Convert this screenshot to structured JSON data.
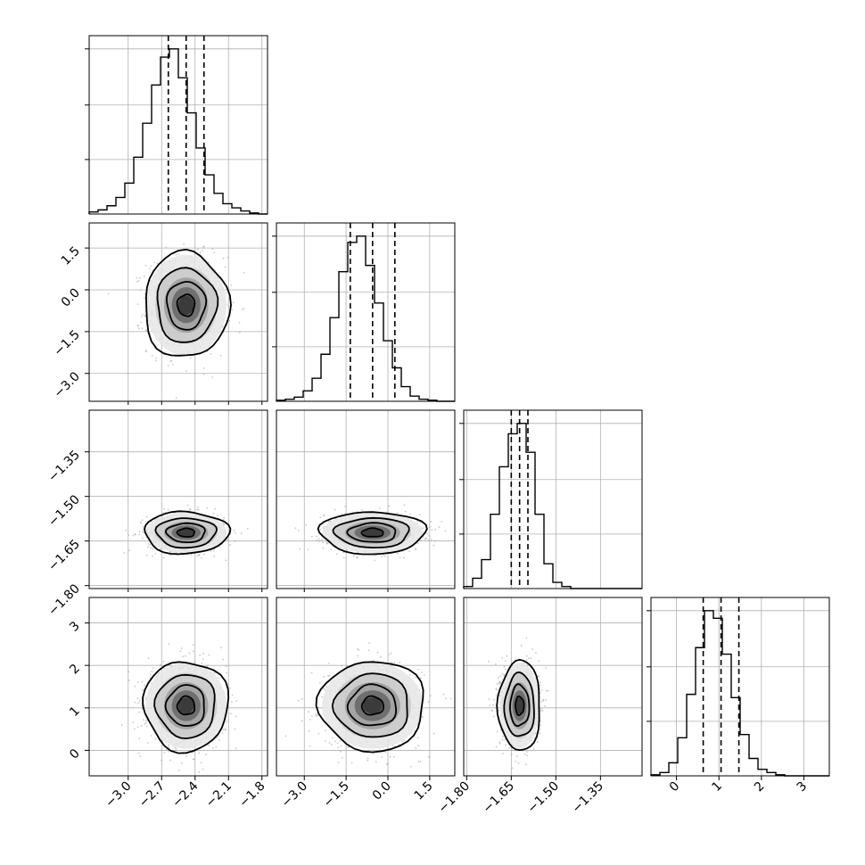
{
  "chart_data": {
    "type": "corner",
    "parameters": [
      {
        "index": 0,
        "range": [
          -3.35,
          -1.75
        ],
        "ticks": [
          -3.0,
          -2.7,
          -2.4,
          -2.1,
          -1.8
        ],
        "tick_labels": [
          "−3.0",
          "−2.7",
          "−2.4",
          "−2.1",
          "−1.8"
        ],
        "mean": -2.48,
        "sigma": 0.15,
        "quantiles": [
          -2.64,
          -2.48,
          -2.32
        ]
      },
      {
        "index": 1,
        "range": [
          -4.0,
          2.4
        ],
        "ticks": [
          -3.0,
          -1.5,
          0.0,
          1.5
        ],
        "tick_labels": [
          "−3.0",
          "−1.5",
          "0.0",
          "1.5"
        ],
        "mean": -0.55,
        "sigma": 0.75,
        "quantiles": [
          -1.35,
          -0.55,
          0.25
        ]
      },
      {
        "index": 2,
        "range": [
          -1.81,
          -1.21
        ],
        "ticks": [
          -1.8,
          -1.65,
          -1.5,
          -1.35
        ],
        "tick_labels": [
          "−1.80",
          "−1.65",
          "−1.50",
          "−1.35"
        ],
        "mean": -1.622,
        "sigma": 0.028,
        "quantiles": [
          -1.65,
          -1.622,
          -1.594
        ]
      },
      {
        "index": 3,
        "range": [
          -0.6,
          3.6
        ],
        "ticks": [
          0,
          1,
          2,
          3
        ],
        "tick_labels": [
          "0",
          "1",
          "2",
          "3"
        ],
        "mean": 1.05,
        "sigma": 0.42,
        "quantiles": [
          0.63,
          1.05,
          1.47
        ]
      }
    ],
    "histograms": [
      {
        "param": 0,
        "edges_range": [
          -3.35,
          -1.75
        ],
        "counts": [
          2,
          4,
          8,
          16,
          30,
          55,
          88,
          125,
          152,
          160,
          132,
          98,
          64,
          38,
          20,
          10,
          6,
          3,
          1,
          0
        ]
      },
      {
        "param": 1,
        "edges_range": [
          -4.0,
          2.4
        ],
        "counts": [
          1,
          2,
          4,
          10,
          22,
          45,
          80,
          124,
          152,
          158,
          130,
          94,
          58,
          32,
          14,
          5,
          2,
          1,
          0,
          0
        ]
      },
      {
        "param": 2,
        "edges_range": [
          -1.81,
          -1.21
        ],
        "counts": [
          2,
          10,
          28,
          72,
          118,
          150,
          160,
          132,
          72,
          24,
          6,
          2,
          0,
          0,
          0,
          0,
          0,
          0,
          0,
          0
        ]
      },
      {
        "param": 3,
        "edges_range": [
          -0.6,
          3.6
        ],
        "counts": [
          1,
          3,
          12,
          35,
          75,
          118,
          152,
          145,
          112,
          72,
          38,
          16,
          6,
          3,
          1,
          0,
          0,
          0,
          0,
          0
        ]
      }
    ],
    "grid": true,
    "quantile_levels": [
      0.16,
      0.5,
      0.84
    ]
  }
}
